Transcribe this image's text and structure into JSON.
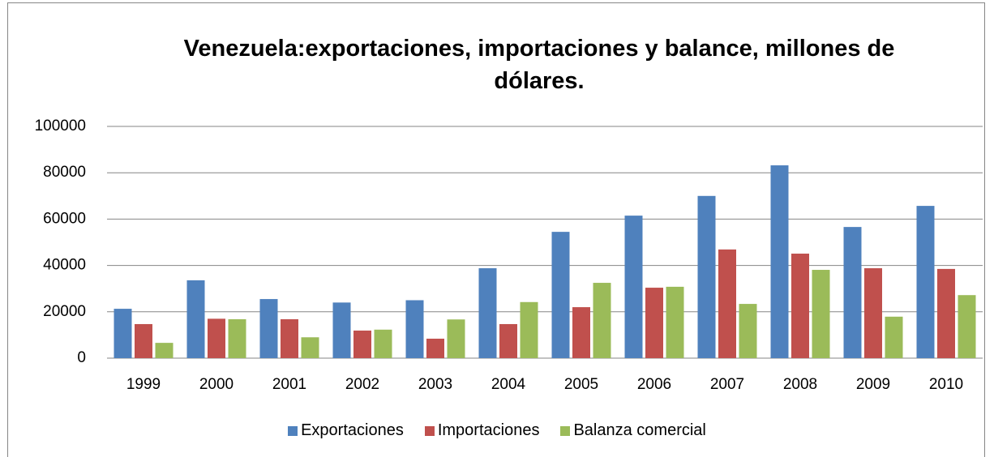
{
  "chart_data": {
    "type": "bar",
    "title": "Venezuela:exportaciones, importaciones y balance, millones de dólares.",
    "categories": [
      "1999",
      "2000",
      "2001",
      "2002",
      "2003",
      "2004",
      "2005",
      "2006",
      "2007",
      "2008",
      "2009",
      "2010"
    ],
    "series": [
      {
        "name": "Exportaciones",
        "color": "#4f81bd",
        "values": [
          21300,
          33600,
          25500,
          24000,
          25000,
          38800,
          54500,
          61500,
          70000,
          83200,
          56600,
          65700
        ]
      },
      {
        "name": "Importaciones",
        "color": "#c0504d",
        "values": [
          14700,
          17000,
          16800,
          11900,
          8400,
          14700,
          22000,
          30400,
          46900,
          45100,
          38800,
          38500
        ]
      },
      {
        "name": "Balanza comercial",
        "color": "#9bbb59",
        "values": [
          6600,
          16800,
          9000,
          12300,
          16700,
          24200,
          32500,
          30800,
          23400,
          38100,
          17900,
          27200
        ]
      }
    ],
    "ylim": [
      0,
      100000
    ],
    "yticks": [
      0,
      20000,
      40000,
      60000,
      80000,
      100000
    ],
    "grid": true,
    "legend": "bottom"
  }
}
